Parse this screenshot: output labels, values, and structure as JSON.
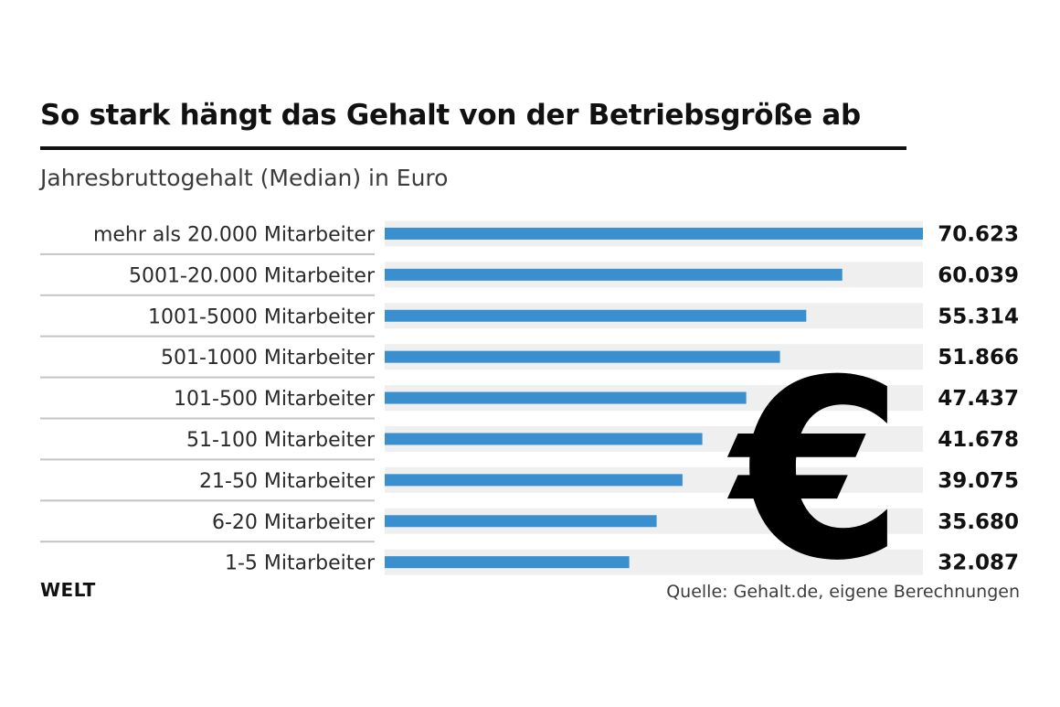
{
  "header": {
    "title": "So stark hängt das Gehalt von der Betriebsgröße ab",
    "subtitle": "Jahresbruttogehalt (Median) in Euro"
  },
  "footer": {
    "brand": "WELT",
    "source": "Quelle: Gehalt.de, eigene Berechnungen"
  },
  "decoration": {
    "symbol": "€",
    "icon": "euro-sign-icon"
  },
  "colors": {
    "bar": "#3a8fcf",
    "track": "#efefef",
    "divider": "#c4c4c4",
    "text": "#111111"
  },
  "chart_data": {
    "type": "bar",
    "orientation": "horizontal",
    "title": "So stark hängt das Gehalt von der Betriebsgröße ab",
    "subtitle": "Jahresbruttogehalt (Median) in Euro",
    "categories": [
      "mehr als 20.000 Mitarbeiter",
      "5001-20.000 Mitarbeiter",
      "1001-5000 Mitarbeiter",
      "501-1000 Mitarbeiter",
      "101-500 Mitarbeiter",
      "51-100 Mitarbeiter",
      "21-50 Mitarbeiter",
      "6-20 Mitarbeiter",
      "1-5 Mitarbeiter"
    ],
    "values": [
      70623,
      60039,
      55314,
      51866,
      47437,
      41678,
      39075,
      35680,
      32087
    ],
    "value_labels": [
      "70.623",
      "60.039",
      "55.314",
      "51.866",
      "47.437",
      "41.678",
      "39.075",
      "35.680",
      "32.087"
    ],
    "xlim": [
      0,
      70623
    ],
    "grid": false,
    "legend": "none"
  }
}
